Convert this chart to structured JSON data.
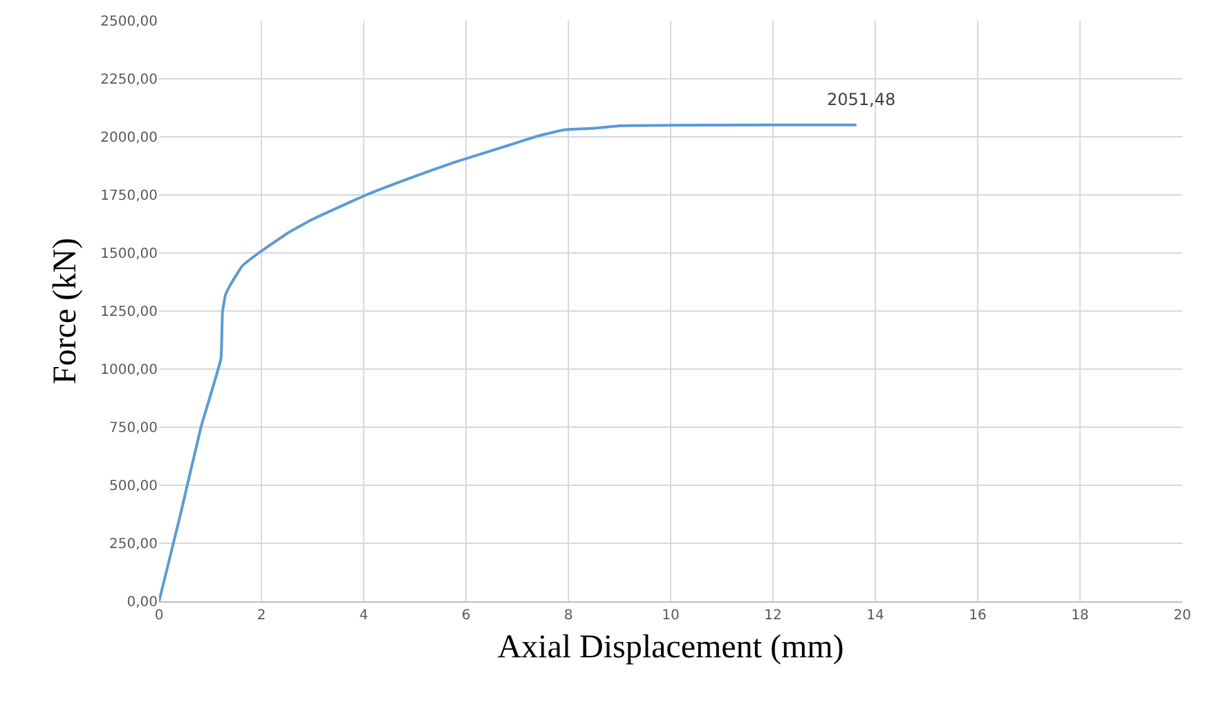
{
  "chart_data": {
    "type": "line",
    "xlabel": "Axial Displacement (mm)",
    "ylabel": "Force (kN)",
    "x": [
      0,
      0.42,
      0.82,
      1.21,
      1.24,
      1.3,
      1.4,
      1.63,
      1.95,
      2.51,
      3,
      4.05,
      5,
      5.77,
      6.85,
      7.35,
      7.9,
      8.5,
      9,
      10,
      12,
      13.63
    ],
    "series": [
      {
        "color": "#5b9bd5",
        "values": [
          0,
          375,
          750,
          1045,
          1245,
          1320,
          1365,
          1445,
          1500,
          1585,
          1645,
          1750,
          1830,
          1890,
          1965,
          2000,
          2030,
          2037,
          2048,
          2050,
          2051,
          2051.48
        ]
      }
    ],
    "annotations": [
      {
        "text": "2051,48",
        "x": 13.63,
        "y": 2051.48
      }
    ],
    "xlim": [
      0,
      20
    ],
    "xticks": [
      0,
      2,
      4,
      6,
      8,
      10,
      12,
      14,
      16,
      18,
      20
    ],
    "ylim": [
      0,
      2500
    ],
    "yticks": [
      {
        "value": 0,
        "label": "0,00"
      },
      {
        "value": 250,
        "label": "250,00"
      },
      {
        "value": 500,
        "label": "500,00"
      },
      {
        "value": 750,
        "label": "750,00"
      },
      {
        "value": 1000,
        "label": "1000,00"
      },
      {
        "value": 1250,
        "label": "1250,00"
      },
      {
        "value": 1500,
        "label": "1500,00"
      },
      {
        "value": 1750,
        "label": "1750,00"
      },
      {
        "value": 2000,
        "label": "2000,00"
      },
      {
        "value": 2250,
        "label": "2250,00"
      },
      {
        "value": 2500,
        "label": "2500,00"
      }
    ],
    "grid": true,
    "marker": "none",
    "line_style": "solid"
  }
}
